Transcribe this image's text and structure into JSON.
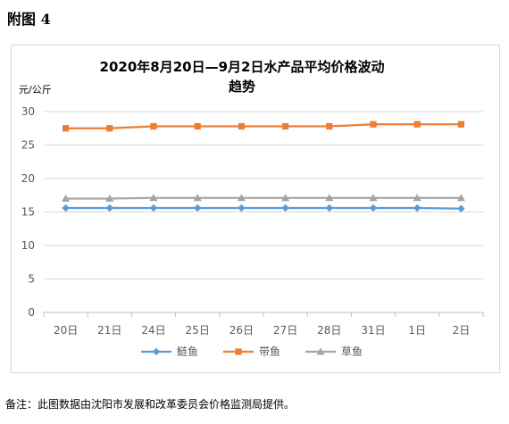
{
  "heading": "附图 4",
  "footnote": "备注：此图数据由沈阳市发展和改革委员会价格监测局提供。",
  "chart_data": {
    "type": "line",
    "title_line1": "2020年8月20日—9月2日水产品平均价格波动",
    "title_line2": "趋势",
    "ylabel": "元/公斤",
    "xlabel": "",
    "categories": [
      "20日",
      "21日",
      "24日",
      "25日",
      "26日",
      "27日",
      "28日",
      "31日",
      "1日",
      "2日"
    ],
    "ylim": [
      0,
      30
    ],
    "yticks": [
      0,
      5,
      10,
      15,
      20,
      25,
      30
    ],
    "grid": true,
    "legend_position": "bottom",
    "series": [
      {
        "name": "鲢鱼",
        "marker": "diamond",
        "color": "#5b9bd5",
        "values": [
          15.6,
          15.6,
          15.6,
          15.6,
          15.6,
          15.6,
          15.6,
          15.6,
          15.6,
          15.5
        ]
      },
      {
        "name": "带鱼",
        "marker": "square",
        "color": "#ed7d31",
        "values": [
          27.5,
          27.5,
          27.8,
          27.8,
          27.8,
          27.8,
          27.8,
          28.1,
          28.1,
          28.1
        ]
      },
      {
        "name": "草鱼",
        "marker": "triangle",
        "color": "#a5a5a5",
        "values": [
          17.0,
          17.0,
          17.1,
          17.1,
          17.1,
          17.1,
          17.1,
          17.1,
          17.1,
          17.1
        ]
      }
    ]
  }
}
